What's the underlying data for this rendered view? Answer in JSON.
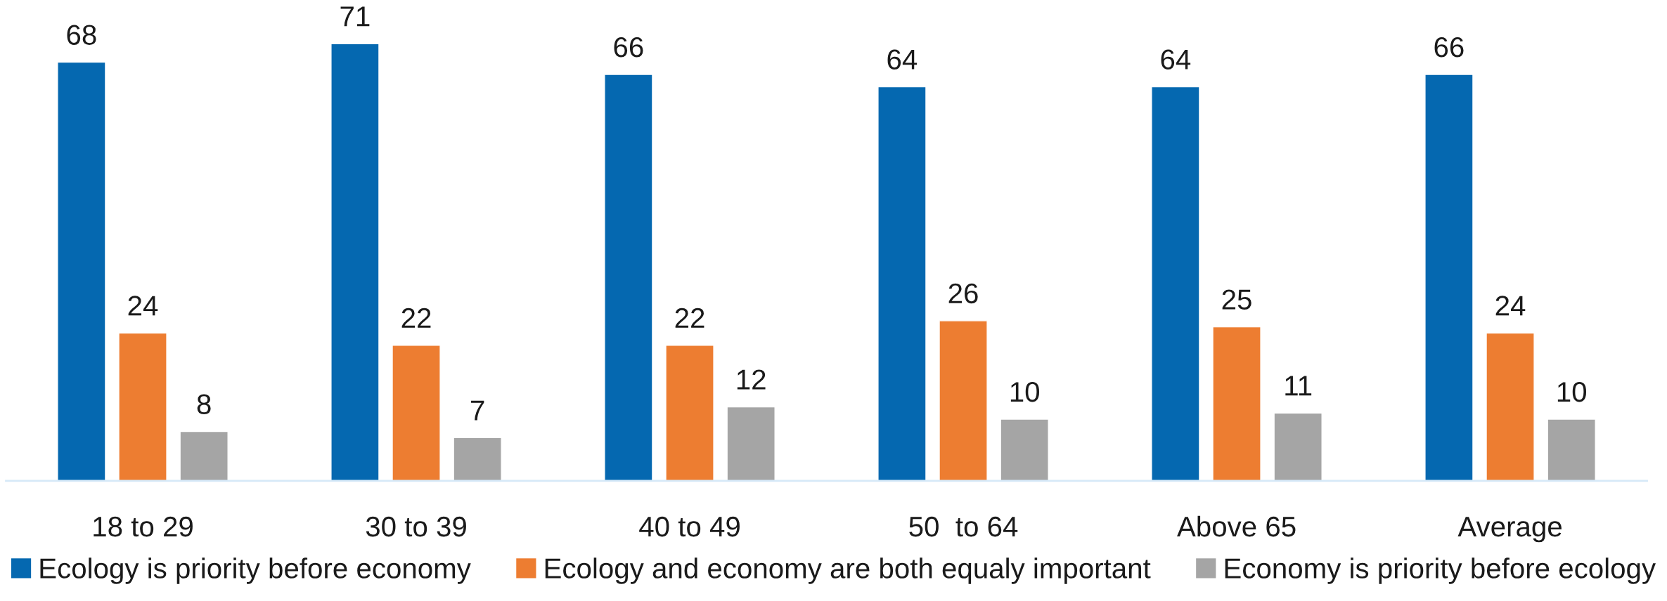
{
  "chart_data": {
    "type": "bar",
    "categories": [
      "18 to 29",
      "30 to 39",
      "40 to 49",
      "50  to 64",
      "Above 65",
      "Average"
    ],
    "series": [
      {
        "name": "Ecology is priority before economy",
        "color": "#0568b0",
        "values": [
          68,
          71,
          66,
          64,
          64,
          66
        ]
      },
      {
        "name": "Ecology and economy are both equaly important",
        "color": "#ed7d31",
        "values": [
          24,
          22,
          22,
          26,
          25,
          24
        ]
      },
      {
        "name": "Economy is priority before ecology",
        "color": "#a5a5a5",
        "values": [
          8,
          7,
          12,
          10,
          11,
          10
        ]
      }
    ],
    "data_labels": true,
    "legend": "bottom",
    "grid": false,
    "tick_labels": "x"
  }
}
